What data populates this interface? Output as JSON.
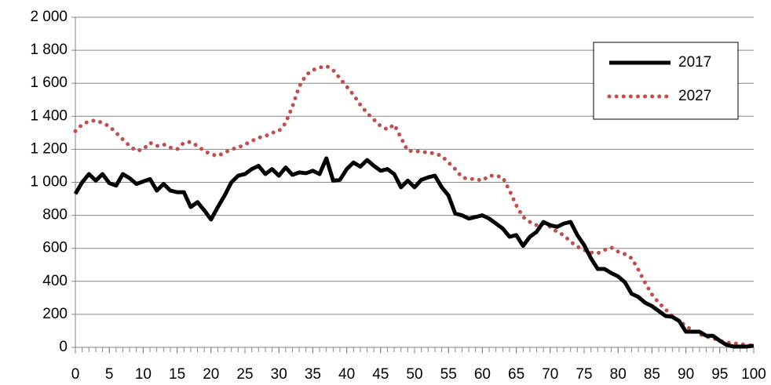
{
  "chart_data": {
    "type": "line",
    "x": [
      0,
      1,
      2,
      3,
      4,
      5,
      6,
      7,
      8,
      9,
      10,
      11,
      12,
      13,
      14,
      15,
      16,
      17,
      18,
      19,
      20,
      21,
      22,
      23,
      24,
      25,
      26,
      27,
      28,
      29,
      30,
      31,
      32,
      33,
      34,
      35,
      36,
      37,
      38,
      39,
      40,
      41,
      42,
      43,
      44,
      45,
      46,
      47,
      48,
      49,
      50,
      51,
      52,
      53,
      54,
      55,
      56,
      57,
      58,
      59,
      60,
      61,
      62,
      63,
      64,
      65,
      66,
      67,
      68,
      69,
      70,
      71,
      72,
      73,
      74,
      75,
      76,
      77,
      78,
      79,
      80,
      81,
      82,
      83,
      84,
      85,
      86,
      87,
      88,
      89,
      90,
      91,
      92,
      93,
      94,
      95,
      96,
      97,
      98,
      99,
      100
    ],
    "series": [
      {
        "name": "2017",
        "color": "#000000",
        "line_style": "solid",
        "values": [
          930,
          1000,
          1050,
          1010,
          1050,
          995,
          980,
          1050,
          1025,
          990,
          1005,
          1020,
          950,
          990,
          950,
          940,
          940,
          850,
          880,
          830,
          775,
          850,
          920,
          1000,
          1040,
          1050,
          1080,
          1100,
          1050,
          1080,
          1040,
          1090,
          1045,
          1060,
          1055,
          1070,
          1050,
          1145,
          1010,
          1015,
          1080,
          1120,
          1095,
          1135,
          1100,
          1070,
          1080,
          1050,
          970,
          1010,
          970,
          1015,
          1030,
          1040,
          970,
          920,
          810,
          800,
          780,
          790,
          800,
          780,
          750,
          720,
          670,
          680,
          615,
          670,
          700,
          760,
          740,
          730,
          750,
          760,
          680,
          620,
          540,
          475,
          475,
          450,
          430,
          395,
          325,
          305,
          270,
          250,
          220,
          190,
          185,
          160,
          95,
          95,
          95,
          70,
          70,
          40,
          15,
          5,
          5,
          5,
          10
        ]
      },
      {
        "name": "2027",
        "color": "#c0504d",
        "line_style": "dotted",
        "values": [
          1310,
          1350,
          1370,
          1375,
          1360,
          1340,
          1300,
          1260,
          1220,
          1190,
          1200,
          1240,
          1220,
          1230,
          1210,
          1200,
          1240,
          1245,
          1220,
          1190,
          1170,
          1160,
          1180,
          1200,
          1210,
          1230,
          1250,
          1270,
          1280,
          1300,
          1310,
          1360,
          1460,
          1580,
          1650,
          1680,
          1695,
          1705,
          1680,
          1630,
          1580,
          1530,
          1470,
          1420,
          1380,
          1340,
          1320,
          1350,
          1270,
          1190,
          1190,
          1185,
          1180,
          1175,
          1160,
          1120,
          1080,
          1030,
          1020,
          1020,
          1010,
          1040,
          1040,
          1030,
          950,
          860,
          790,
          760,
          740,
          750,
          730,
          700,
          680,
          640,
          610,
          590,
          575,
          570,
          590,
          605,
          580,
          565,
          540,
          470,
          390,
          320,
          270,
          230,
          190,
          160,
          130,
          100,
          80,
          65,
          55,
          40,
          30,
          25,
          20,
          15,
          10
        ]
      }
    ],
    "xlim": [
      0,
      100
    ],
    "xticks": [
      0,
      5,
      10,
      15,
      20,
      25,
      30,
      35,
      40,
      45,
      50,
      55,
      60,
      65,
      70,
      75,
      80,
      85,
      90,
      95,
      100
    ],
    "ylim": [
      0,
      2000
    ],
    "yticks": [
      0,
      200,
      400,
      600,
      800,
      {
        "value": 1000,
        "label": "1 000"
      },
      {
        "value": 1200,
        "label": "1 200"
      },
      {
        "value": 1400,
        "label": "1 400"
      },
      {
        "value": 1600,
        "label": "1 600"
      },
      {
        "value": 1800,
        "label": "1 800"
      },
      {
        "value": 2000,
        "label": "2 000"
      }
    ],
    "grid": true,
    "legend": "top-right"
  }
}
